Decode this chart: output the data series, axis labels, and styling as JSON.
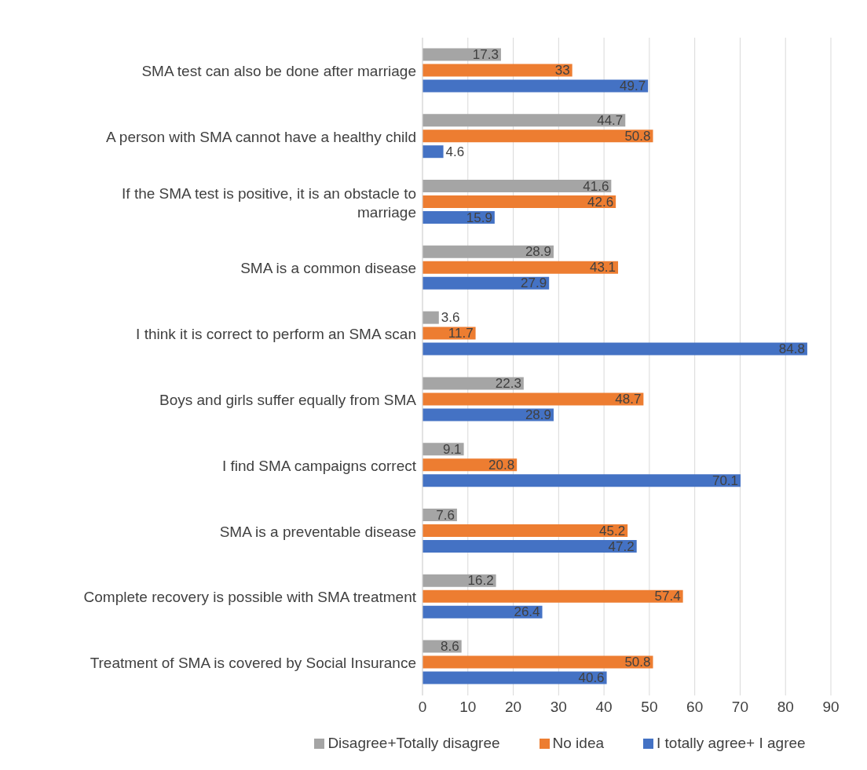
{
  "chart_data": {
    "type": "bar",
    "orientation": "horizontal",
    "categories": [
      "SMA test can also be done after marriage",
      "A person with SMA cannot have a healthy child",
      "If the SMA test is positive, it is an obstacle to marriage",
      "SMA is a common disease",
      "I think it is correct to perform an SMA scan",
      "Boys and girls suffer equally from SMA",
      "I find SMA campaigns correct",
      "SMA is a preventable disease",
      "Complete recovery is possible with SMA treatment",
      "Treatment of SMA is covered by Social Insurance"
    ],
    "series": [
      {
        "name": "Disagree+Totally disagree",
        "color": "#a5a5a5",
        "values": [
          17.3,
          44.7,
          41.6,
          28.9,
          3.6,
          22.3,
          9.1,
          7.6,
          16.2,
          8.6
        ]
      },
      {
        "name": "No idea",
        "color": "#ed7d31",
        "values": [
          33,
          50.8,
          42.6,
          43.1,
          11.7,
          48.7,
          20.8,
          45.2,
          57.4,
          50.8
        ]
      },
      {
        "name": "I totally agree+ I agree",
        "color": "#4472c4",
        "values": [
          49.7,
          4.6,
          15.9,
          27.9,
          84.8,
          28.9,
          70.1,
          47.2,
          26.4,
          40.6
        ]
      }
    ],
    "xlim": [
      0,
      90
    ],
    "xticks": [
      0,
      10,
      20,
      30,
      40,
      50,
      60,
      70,
      80,
      90
    ],
    "grid": "x",
    "legend": "bottom",
    "data_labels": true
  }
}
